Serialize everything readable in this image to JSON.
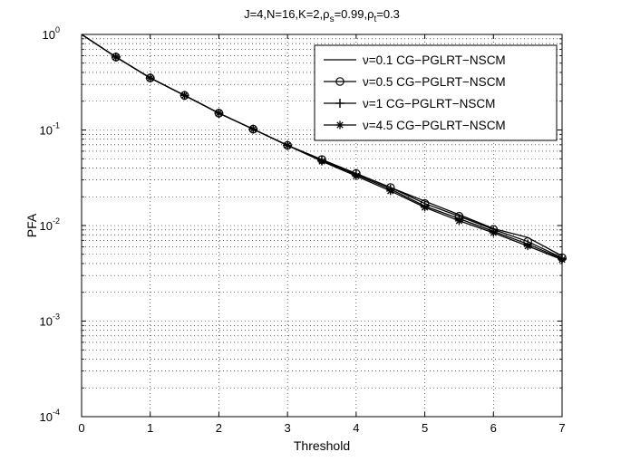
{
  "chart_data": {
    "type": "line",
    "title_main": "J=4,N=16,K=2,ρ",
    "title_parts": [
      {
        "text": "J=4,N=16,K=2,ρ",
        "sub": false
      },
      {
        "text": "s",
        "sub": true
      },
      {
        "text": "=0.99,ρ",
        "sub": false
      },
      {
        "text": "t",
        "sub": true
      },
      {
        "text": "=0.3",
        "sub": false
      }
    ],
    "xlabel": "Threshold",
    "ylabel": "PFA",
    "xlim": [
      0,
      7
    ],
    "ylim": [
      0.0001,
      1
    ],
    "yscale": "log",
    "grid": true,
    "legend_position": "top-right",
    "x_ticks": [
      "0",
      "1",
      "2",
      "3",
      "4",
      "5",
      "6",
      "7"
    ],
    "y_ticks": [
      {
        "base": "10",
        "exp": "0"
      },
      {
        "base": "10",
        "exp": "-1"
      },
      {
        "base": "10",
        "exp": "-2"
      },
      {
        "base": "10",
        "exp": "-3"
      },
      {
        "base": "10",
        "exp": "-4"
      }
    ],
    "x": [
      0,
      0.5,
      1,
      1.5,
      2,
      2.5,
      3,
      3.5,
      4,
      4.5,
      5,
      5.5,
      6,
      6.5,
      7
    ],
    "series": [
      {
        "name": "ν=0.1 CG−PGLRT−NSCM",
        "marker": "none",
        "values": [
          1,
          0.58,
          0.35,
          0.23,
          0.15,
          0.102,
          0.069,
          0.049,
          0.035,
          0.025,
          0.018,
          0.013,
          0.0093,
          0.0075,
          0.0048
        ]
      },
      {
        "name": "ν=0.5 CG−PGLRT−NSCM",
        "marker": "circle",
        "values": [
          1,
          0.58,
          0.35,
          0.23,
          0.15,
          0.102,
          0.069,
          0.049,
          0.035,
          0.025,
          0.017,
          0.0125,
          0.0091,
          0.0068,
          0.0046
        ]
      },
      {
        "name": "ν=1 CG−PGLRT−NSCM",
        "marker": "plus",
        "values": [
          1,
          0.58,
          0.35,
          0.23,
          0.15,
          0.102,
          0.069,
          0.048,
          0.034,
          0.024,
          0.016,
          0.0118,
          0.0087,
          0.0064,
          0.0045
        ]
      },
      {
        "name": "ν=4.5 CG−PGLRT−NSCM",
        "marker": "star",
        "values": [
          1,
          0.58,
          0.35,
          0.23,
          0.15,
          0.102,
          0.069,
          0.047,
          0.033,
          0.023,
          0.0155,
          0.0112,
          0.0084,
          0.0061,
          0.0044
        ]
      }
    ]
  }
}
